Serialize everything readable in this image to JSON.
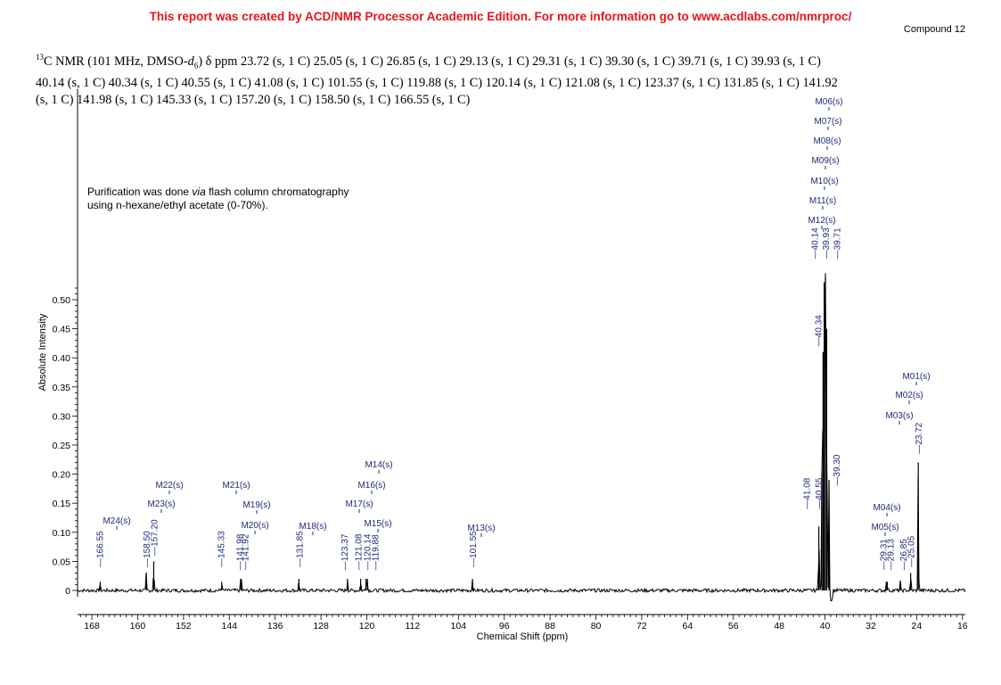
{
  "header": {
    "banner": "This report was created by ACD/NMR Processor Academic Edition. For more information go to www.acdlabs.com/nmrproc/",
    "compound": "Compound 12"
  },
  "nmr_text": {
    "nucleus_mass": "13",
    "prefix": "C NMR (101 MHz, DMSO-",
    "solvent_d": "d",
    "solvent_sub": "6",
    "line1_rest": ") δ ppm 23.72 (s, 1 C) 25.05 (s, 1 C) 26.85 (s, 1 C) 29.13 (s, 1 C) 29.31 (s, 1 C) 39.30 (s, 1 C) 39.71 (s, 1 C) 39.93 (s, 1 C)",
    "line2": "40.14 (s, 1 C) 40.34 (s, 1 C) 40.55 (s, 1 C) 41.08 (s, 1 C) 101.55 (s, 1 C) 119.88 (s, 1 C) 120.14 (s, 1 C) 121.08 (s, 1 C) 123.37 (s, 1 C) 131.85 (s, 1 C) 141.92",
    "line3": "(s, 1 C) 141.98 (s, 1 C) 145.33 (s, 1 C) 157.20 (s, 1 C) 158.50 (s, 1 C) 166.55 (s, 1 C)"
  },
  "note": {
    "line1_pre": "Purification was done ",
    "line1_em": "via",
    "line1_post": " flash column chromatography",
    "line2": "using n-hexane/ethyl acetate (0-70%)."
  },
  "chart_data": {
    "type": "line",
    "xlabel": "Chemical Shift (ppm)",
    "ylabel": "Absolute Intensity",
    "xlim": [
      170.5,
      15.5
    ],
    "ylim": [
      0,
      0.52
    ],
    "x_ticks": [
      168,
      160,
      152,
      144,
      136,
      128,
      120,
      112,
      104,
      96,
      88,
      80,
      72,
      64,
      56,
      48,
      40,
      32,
      24,
      16
    ],
    "y_ticks": [
      0,
      0.05,
      0.1,
      0.15,
      0.2,
      0.25,
      0.3,
      0.35,
      0.4,
      0.45,
      0.5
    ],
    "y_tick_labels": [
      "0",
      "0.05",
      "0.10",
      "0.15",
      "0.20",
      "0.25",
      "0.30",
      "0.35",
      "0.40",
      "0.45",
      "0.50"
    ],
    "peaks": [
      {
        "ppm": 166.55,
        "height": 0.015,
        "label": "166.55"
      },
      {
        "ppm": 158.5,
        "height": 0.03,
        "label": "158.50"
      },
      {
        "ppm": 157.2,
        "height": 0.05,
        "label": "157.20"
      },
      {
        "ppm": 145.33,
        "height": 0.015,
        "label": "145.33"
      },
      {
        "ppm": 141.98,
        "height": 0.02,
        "label": "141.98"
      },
      {
        "ppm": 141.92,
        "height": 0.02,
        "label": "141.92"
      },
      {
        "ppm": 131.85,
        "height": 0.02,
        "label": "131.85"
      },
      {
        "ppm": 123.37,
        "height": 0.02,
        "label": "123.37"
      },
      {
        "ppm": 121.08,
        "height": 0.02,
        "label": "121.08"
      },
      {
        "ppm": 120.14,
        "height": 0.02,
        "label": "120.14"
      },
      {
        "ppm": 119.88,
        "height": 0.02,
        "label": "119.88"
      },
      {
        "ppm": 101.55,
        "height": 0.02,
        "label": "101.55"
      },
      {
        "ppm": 41.08,
        "height": 0.11,
        "label": "41.08"
      },
      {
        "ppm": 40.55,
        "height": 0.2,
        "label": "40.55"
      },
      {
        "ppm": 40.34,
        "height": 0.41,
        "label": "40.34"
      },
      {
        "ppm": 40.14,
        "height": 0.53,
        "label": "40.14"
      },
      {
        "ppm": 39.93,
        "height": 0.54,
        "label": "39.93"
      },
      {
        "ppm": 39.71,
        "height": 0.45,
        "label": "39.71"
      },
      {
        "ppm": 39.3,
        "height": 0.19,
        "label": "39.30"
      },
      {
        "ppm": 29.31,
        "height": 0.015,
        "label": "29.31"
      },
      {
        "ppm": 29.13,
        "height": 0.015,
        "label": "29.13"
      },
      {
        "ppm": 26.85,
        "height": 0.015,
        "label": "26.85"
      },
      {
        "ppm": 25.05,
        "height": 0.03,
        "label": "25.05"
      },
      {
        "ppm": 23.72,
        "height": 0.22,
        "label": "23.72"
      }
    ],
    "multiplets": [
      {
        "label": "M01(s)",
        "ppm": 23.72
      },
      {
        "label": "M02(s)",
        "ppm": 25.05
      },
      {
        "label": "M03(s)",
        "ppm": 26.85
      },
      {
        "label": "M04(s)",
        "ppm": 29.13
      },
      {
        "label": "M05(s)",
        "ppm": 29.31
      },
      {
        "label": "M06(s)",
        "ppm": 39.93
      },
      {
        "label": "M07(s)",
        "ppm": 39.93
      },
      {
        "label": "M08(s)",
        "ppm": 39.93
      },
      {
        "label": "M09(s)",
        "ppm": 39.93
      },
      {
        "label": "M10(s)",
        "ppm": 39.93
      },
      {
        "label": "M11(s)",
        "ppm": 40.14
      },
      {
        "label": "M12(s)",
        "ppm": 40.14
      },
      {
        "label": "M13(s)",
        "ppm": 101.55
      },
      {
        "label": "M14(s)",
        "ppm": 120.14
      },
      {
        "label": "M15(s)",
        "ppm": 120.14
      },
      {
        "label": "M16(s)",
        "ppm": 121.08
      },
      {
        "label": "M17(s)",
        "ppm": 123.37
      },
      {
        "label": "M18(s)",
        "ppm": 131.85
      },
      {
        "label": "M19(s)",
        "ppm": 141.92
      },
      {
        "label": "M20(s)",
        "ppm": 141.92
      },
      {
        "label": "M21(s)",
        "ppm": 145.33
      },
      {
        "label": "M22(s)",
        "ppm": 157.2
      },
      {
        "label": "M23(s)",
        "ppm": 158.5
      },
      {
        "label": "M24(s)",
        "ppm": 166.55
      }
    ],
    "grid": false,
    "colors": {
      "trace": "#000000",
      "labels": "#1f2a7a",
      "banner": "#e8141c"
    }
  }
}
